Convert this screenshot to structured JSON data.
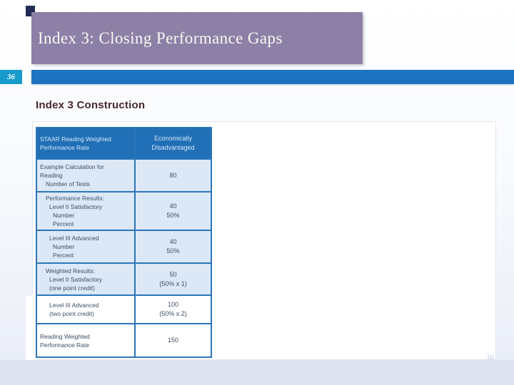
{
  "slide": {
    "title": "Index 3: Closing Performance Gaps",
    "page_number": "36",
    "corner_page_number": "36",
    "section_heading": "Index 3 Construction"
  },
  "colors": {
    "title_bar": "#8d80a7",
    "accent_bar": "#1d73c2",
    "page_badge": "#189bcb",
    "table_header": "#2170b7",
    "table_border": "#2d75b8",
    "row_tint": "#dce8f6",
    "body_text": "#3e4d63",
    "heading_text": "#46282a",
    "bottom_band": "#dee4f2",
    "mini_rect": "#202c55"
  },
  "table": {
    "header": {
      "col1_lines": [
        "STAAR Reading Weighted",
        "Performance Rate"
      ],
      "col2_lines": [
        "Economically",
        "Disadvantaged"
      ]
    },
    "rows": [
      {
        "lines": [
          "Example Calculation for",
          "Reading",
          "Number of Tests"
        ],
        "values": [
          "80"
        ]
      },
      {
        "lines": [
          "Performance Results:",
          "Level II Satisfactory",
          "Number",
          "Percent"
        ],
        "values": [
          "40",
          "50%"
        ]
      },
      {
        "lines": [
          "Level III Advanced",
          "Number",
          "Percent"
        ],
        "values": [
          "40",
          "50%"
        ]
      },
      {
        "lines": [
          "Weighted Results:",
          "Level II Satisfactory",
          "(one point credit)"
        ],
        "values": [
          "50",
          "(50% x 1)"
        ]
      },
      {
        "lines": [
          "Level III Advanced",
          "(two point credit)"
        ],
        "values": [
          "100",
          "(50% x 2)"
        ]
      },
      {
        "lines": [
          "Reading Weighted",
          "Performance Rate"
        ],
        "values": [
          "150"
        ]
      }
    ]
  }
}
